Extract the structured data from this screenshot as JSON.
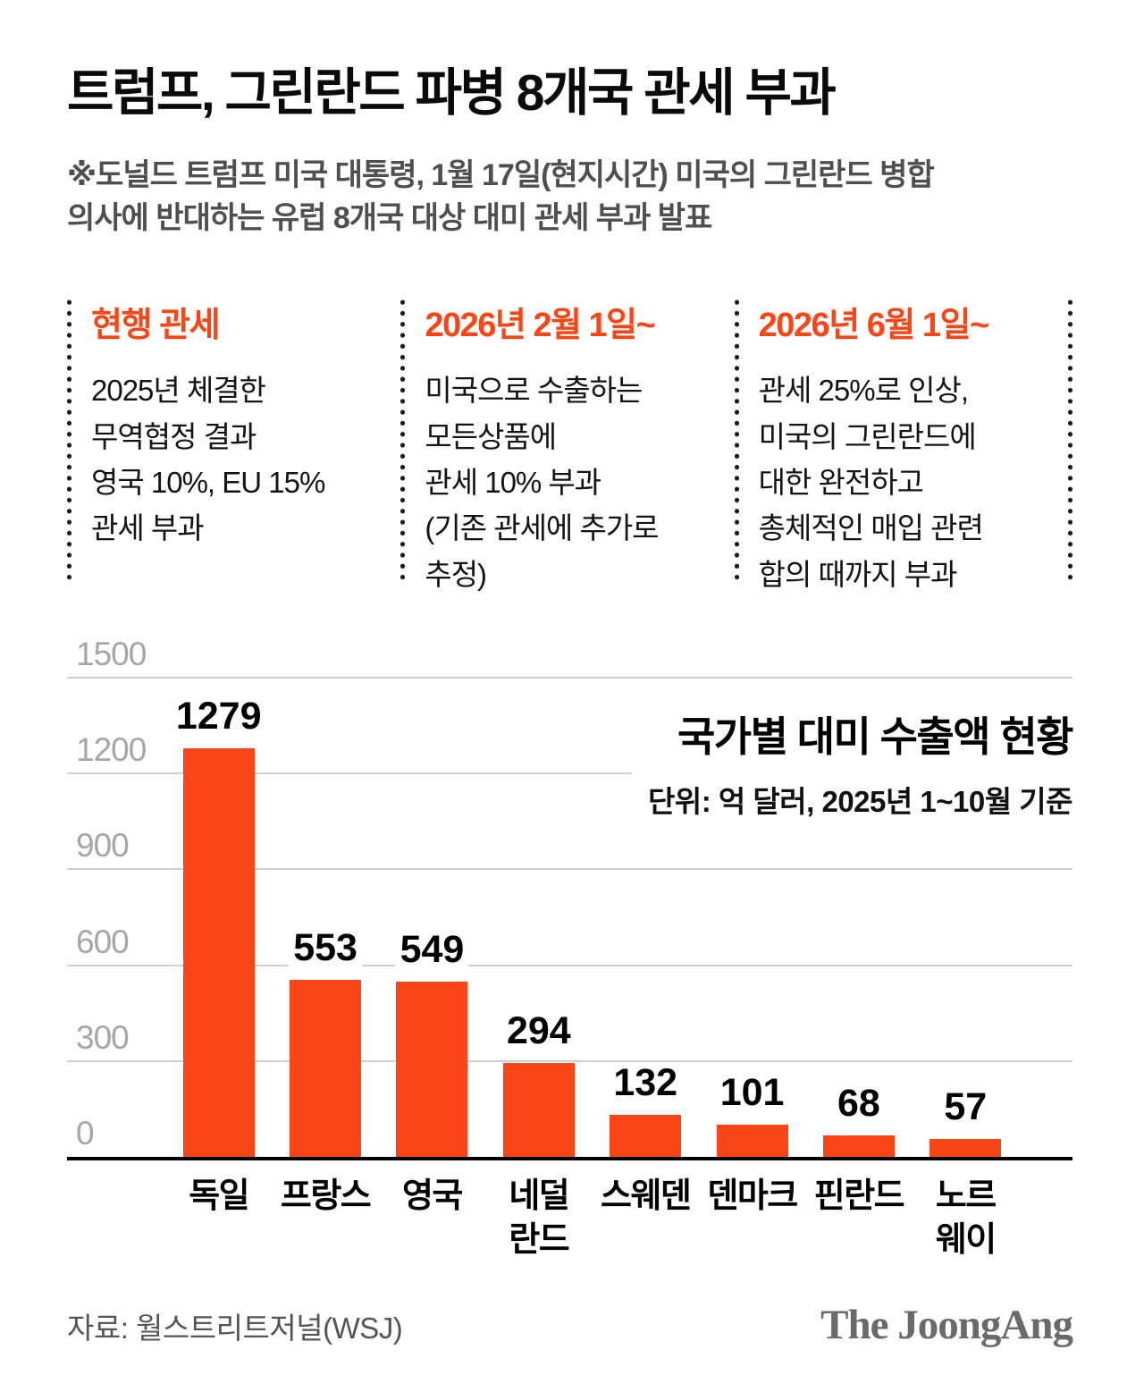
{
  "colors": {
    "accent": "#FA4616",
    "gridline": "#CFCFCF",
    "axis_tick": "#A6A6A6",
    "baseline": "#000000",
    "title_text": "#0A0A0A",
    "lede_text": "#4F4F4F",
    "footer_text": "#555555",
    "logo_text": "#6A6A6A"
  },
  "header": {
    "title": "트럼프, 그린란드 파병 8개국 관세 부과",
    "lede": "※도널드 트럼프 미국 대통령, 1월 17일(현지시간) 미국의 그린란드 병합\n의사에 반대하는 유럽 8개국 대상 대미 관세 부과 발표"
  },
  "timeline": {
    "columns": [
      {
        "heading": "현행 관세",
        "body": "2025년 체결한\n무역협정 결과\n영국 10%, EU 15%\n관세 부과"
      },
      {
        "heading": "2026년 2월 1일~",
        "body": "미국으로 수출하는\n모든상품에\n관세 10% 부과\n(기존 관세에 추가로\n추정)"
      },
      {
        "heading": "2026년 6월 1일~",
        "body": "관세 25%로 인상,\n미국의 그린란드에\n대한 완전하고\n총체적인 매입 관련\n합의 때까지 부과"
      }
    ]
  },
  "chart_data": {
    "type": "bar",
    "title": "국가별 대미 수출액 현황",
    "subtitle": "단위: 억 달러, 2025년 1~10월 기준",
    "categories": [
      "독일",
      "프랑스",
      "영국",
      "네덜란드",
      "스웨덴",
      "덴마크",
      "핀란드",
      "노르웨이"
    ],
    "categories_display": [
      "독일",
      "프랑스",
      "영국",
      "네덜\n란드",
      "스웨덴",
      "덴마크",
      "핀란드",
      "노르\n웨이"
    ],
    "values": [
      1279,
      553,
      549,
      294,
      132,
      101,
      68,
      57
    ],
    "xlabel": "",
    "ylabel": "",
    "ylim": [
      0,
      1500
    ],
    "yticks": [
      0,
      300,
      600,
      900,
      1200,
      1500
    ],
    "grid": true,
    "legend": false,
    "bar_color": "#FA4616"
  },
  "footer": {
    "source": "자료: 월스트리트저널(WSJ)",
    "logo": "The JoongAng"
  }
}
